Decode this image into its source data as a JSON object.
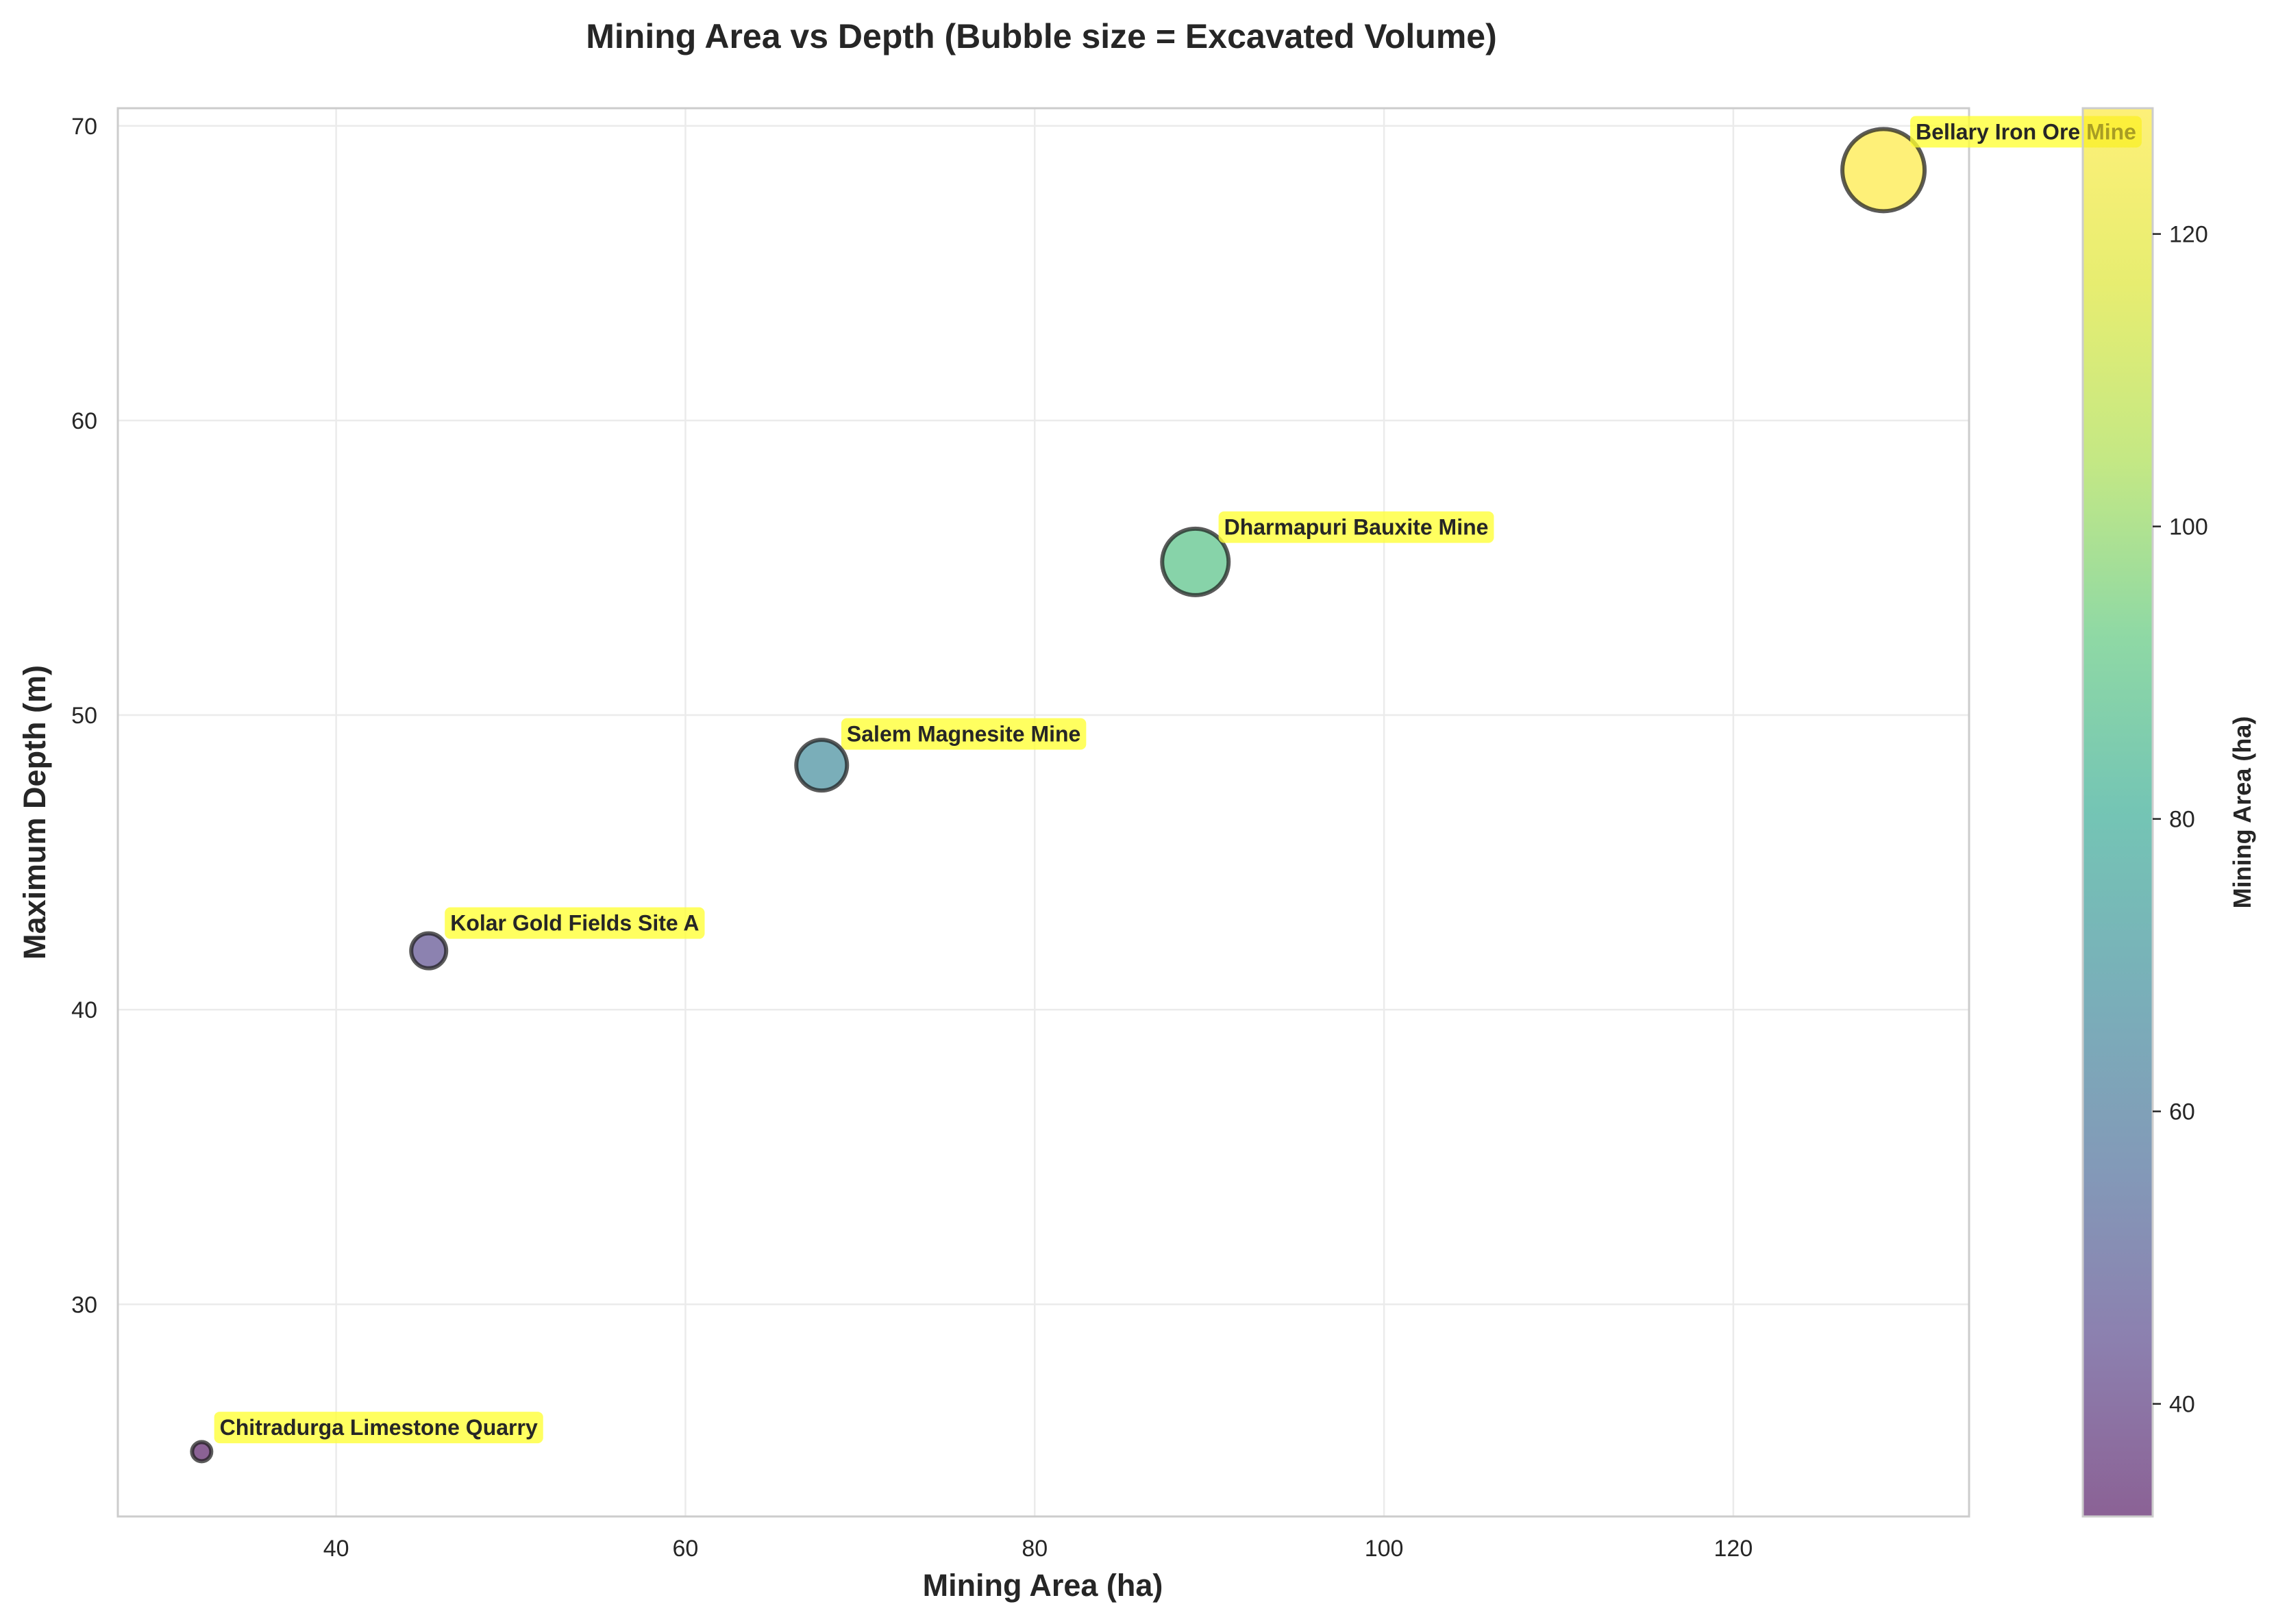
{
  "chart_data": {
    "type": "scatter",
    "title": "Mining Area vs Depth (Bubble size = Excavated Volume)",
    "xlabel": "Mining Area (ha)",
    "ylabel": "Maximum Depth (m)",
    "xlim": [
      27.5,
      133.5
    ],
    "ylim": [
      22.8,
      70.6
    ],
    "xticks": [
      40,
      60,
      80,
      100,
      120
    ],
    "yticks": [
      30,
      40,
      50,
      60,
      70
    ],
    "grid": true,
    "points": [
      {
        "label": "Chitradurga Limestone Quarry",
        "x": 32.3,
        "y": 25.0,
        "size_rank": 1
      },
      {
        "label": "Kolar Gold Fields Site A",
        "x": 45.3,
        "y": 42.0,
        "size_rank": 2
      },
      {
        "label": "Salem Magnesite Mine",
        "x": 67.8,
        "y": 48.3,
        "size_rank": 3
      },
      {
        "label": "Dharmapuri Bauxite Mine",
        "x": 89.2,
        "y": 55.2,
        "size_rank": 4
      },
      {
        "label": "Bellary Iron Ore Mine",
        "x": 128.6,
        "y": 68.5,
        "size_rank": 5
      }
    ],
    "colorbar": {
      "label": "Mining Area (ha)",
      "colormap": "viridis",
      "range": [
        32.3,
        128.6
      ],
      "ticks": [
        40,
        60,
        80,
        100,
        120
      ]
    },
    "annotation_box_color": "#ffff33"
  }
}
